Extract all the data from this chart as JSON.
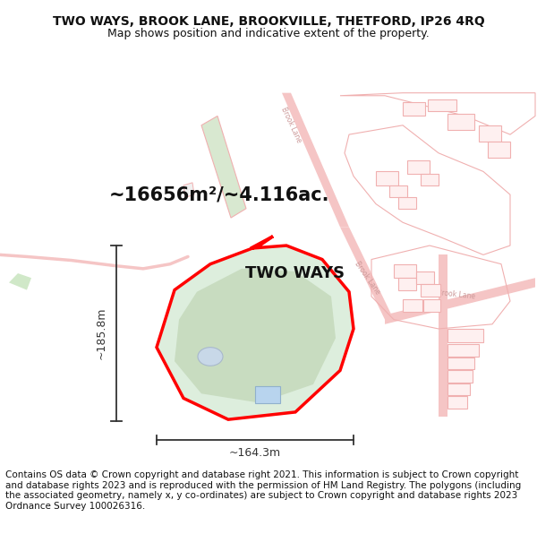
{
  "title_line1": "TWO WAYS, BROOK LANE, BROOKVILLE, THETFORD, IP26 4RQ",
  "title_line2": "Map shows position and indicative extent of the property.",
  "area_text": "~16656m²/~4.116ac.",
  "property_label": "TWO WAYS",
  "dim_width": "~164.3m",
  "dim_height": "~185.8m",
  "footer_text": "Contains OS data © Crown copyright and database right 2021. This information is subject to Crown copyright and database rights 2023 and is reproduced with the permission of HM Land Registry. The polygons (including the associated geometry, namely x, y co-ordinates) are subject to Crown copyright and database rights 2023 Ordnance Survey 100026316.",
  "background_color": "#ffffff",
  "plot_fill_color": "#ddeedd",
  "plot_edge_color": "#ff0000",
  "road_color": "#f5c5c5",
  "dim_line_color": "#333333",
  "title_fontsize": 10,
  "subtitle_fontsize": 9,
  "area_fontsize": 15,
  "label_fontsize": 13,
  "footer_fontsize": 7.5
}
